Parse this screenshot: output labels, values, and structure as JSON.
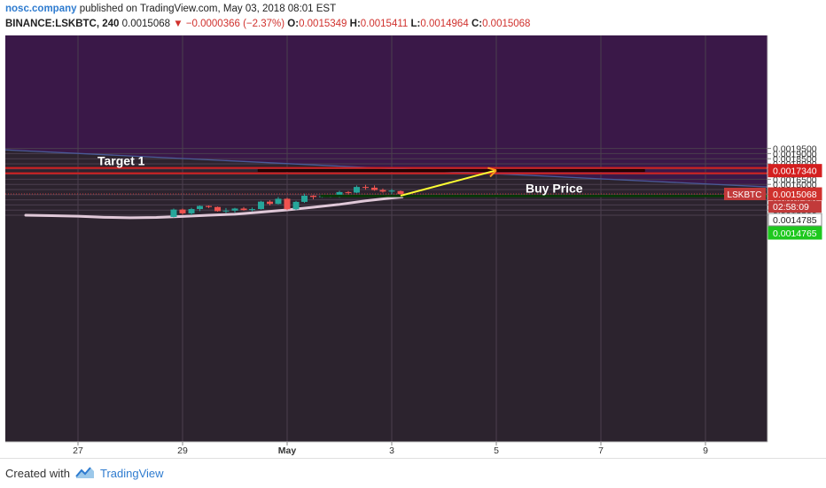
{
  "header": {
    "author": "nosc.company",
    "published_text": "published on TradingView.com, May 03, 2018 08:01 EST",
    "symbol": "BINANCE:LSKBTC, 240",
    "last": "0.0015068",
    "change": "−0.0000366 (−2.37%)",
    "open_label": "O:",
    "open": "0.0015349",
    "high_label": "H:",
    "high": "0.0015411",
    "low_label": "L:",
    "low": "0.0014964",
    "close_label": "C:",
    "close": "0.0015068"
  },
  "footer": {
    "created_with": "Created with",
    "brand": "TradingView"
  },
  "colors": {
    "up": "#26a69a",
    "down": "#ef5350",
    "ema": "#e0c8d8",
    "target_line": "#d41f1f",
    "buy_line": "#1ec81e",
    "arrow": "#ffff33",
    "trend_line": "#4a5a98",
    "purple_zone": "#3a1848"
  },
  "chart_data": {
    "type": "candlestick",
    "symbol": "LSKBTC",
    "exchange": "BINANCE",
    "interval": "240",
    "ylim": [
      0.00128,
      0.00198
    ],
    "y_ticks": [
      "0.0013000",
      "0.0013500",
      "0.0014000",
      "0.0014500",
      "0.0015000",
      "0.0015500",
      "0.0016000",
      "0.0016500",
      "0.0017000",
      "0.0017500",
      "0.0018000",
      "0.0018500",
      "0.0019000",
      "0.0019500"
    ],
    "x_ticks": [
      {
        "label": "27",
        "day": 27
      },
      {
        "label": "29",
        "day": 29
      },
      {
        "label": "May",
        "day": 31
      },
      {
        "label": "3",
        "day": 33
      },
      {
        "label": "5",
        "day": 35
      },
      {
        "label": "7",
        "day": 37
      },
      {
        "label": "9",
        "day": 39
      }
    ],
    "candles": [
      {
        "t": 28.83,
        "o": 0.001283,
        "h": 0.001365,
        "l": 0.001278,
        "c": 0.001355
      },
      {
        "t": 29.0,
        "o": 0.001355,
        "h": 0.001365,
        "l": 0.001305,
        "c": 0.001318
      },
      {
        "t": 29.17,
        "o": 0.001318,
        "h": 0.001372,
        "l": 0.0013,
        "c": 0.00136
      },
      {
        "t": 29.33,
        "o": 0.00136,
        "h": 0.001395,
        "l": 0.00134,
        "c": 0.00139
      },
      {
        "t": 29.5,
        "o": 0.00139,
        "h": 0.001395,
        "l": 0.00137,
        "c": 0.00138
      },
      {
        "t": 29.67,
        "o": 0.00138,
        "h": 0.001385,
        "l": 0.001335,
        "c": 0.00134
      },
      {
        "t": 29.83,
        "o": 0.00134,
        "h": 0.00137,
        "l": 0.00132,
        "c": 0.001345
      },
      {
        "t": 30.0,
        "o": 0.001345,
        "h": 0.001372,
        "l": 0.001325,
        "c": 0.001365
      },
      {
        "t": 30.17,
        "o": 0.001365,
        "h": 0.00138,
        "l": 0.001345,
        "c": 0.00135
      },
      {
        "t": 30.33,
        "o": 0.00135,
        "h": 0.001375,
        "l": 0.001338,
        "c": 0.00136
      },
      {
        "t": 30.5,
        "o": 0.00136,
        "h": 0.00144,
        "l": 0.001355,
        "c": 0.001432
      },
      {
        "t": 30.67,
        "o": 0.001432,
        "h": 0.001445,
        "l": 0.001395,
        "c": 0.00141
      },
      {
        "t": 30.83,
        "o": 0.00141,
        "h": 0.001478,
        "l": 0.001405,
        "c": 0.00146
      },
      {
        "t": 31.0,
        "o": 0.00146,
        "h": 0.00147,
        "l": 0.00135,
        "c": 0.001358
      },
      {
        "t": 31.17,
        "o": 0.001358,
        "h": 0.00144,
        "l": 0.00135,
        "c": 0.00143
      },
      {
        "t": 31.33,
        "o": 0.00143,
        "h": 0.00151,
        "l": 0.00142,
        "c": 0.00149
      },
      {
        "t": 31.5,
        "o": 0.00149,
        "h": 0.001495,
        "l": 0.001455,
        "c": 0.001478
      },
      {
        "t": 31.67,
        "o": 0.001478,
        "h": 0.001498,
        "l": 0.00147,
        "c": 0.001485
      },
      {
        "t": 31.83,
        "o": 0.001485,
        "h": 0.0015,
        "l": 0.001472,
        "c": 0.001495
      },
      {
        "t": 32.0,
        "o": 0.001495,
        "h": 0.001538,
        "l": 0.00147,
        "c": 0.001525
      },
      {
        "t": 32.17,
        "o": 0.001525,
        "h": 0.001535,
        "l": 0.0015,
        "c": 0.00152
      },
      {
        "t": 32.33,
        "o": 0.00152,
        "h": 0.00159,
        "l": 0.001515,
        "c": 0.001575
      },
      {
        "t": 32.5,
        "o": 0.001575,
        "h": 0.001595,
        "l": 0.001548,
        "c": 0.001568
      },
      {
        "t": 32.67,
        "o": 0.001568,
        "h": 0.00159,
        "l": 0.001538,
        "c": 0.001545
      },
      {
        "t": 32.83,
        "o": 0.001545,
        "h": 0.00156,
        "l": 0.00152,
        "c": 0.00153
      },
      {
        "t": 33.0,
        "o": 0.00153,
        "h": 0.001555,
        "l": 0.001505,
        "c": 0.00154
      },
      {
        "t": 33.17,
        "o": 0.001535,
        "h": 0.001541,
        "l": 0.001496,
        "c": 0.001507
      }
    ],
    "ema_line": [
      [
        26.0,
        0.0013
      ],
      [
        26.5,
        0.001296
      ],
      [
        27.0,
        0.00129
      ],
      [
        27.5,
        0.00128
      ],
      [
        28.0,
        0.001275
      ],
      [
        28.5,
        0.001278
      ],
      [
        29.0,
        0.001288
      ],
      [
        29.5,
        0.0013
      ],
      [
        30.0,
        0.00131
      ],
      [
        30.5,
        0.00133
      ],
      [
        31.0,
        0.001352
      ],
      [
        31.5,
        0.001378
      ],
      [
        32.0,
        0.001405
      ],
      [
        32.5,
        0.00144
      ],
      [
        33.0,
        0.001468
      ],
      [
        33.2,
        0.001478
      ]
    ],
    "trend_line": [
      [
        25.96,
        0.001927
      ],
      [
        40.4,
        0.00157
      ]
    ],
    "price_lines": [
      {
        "name": "Target 1",
        "value": 0.001734
      },
      {
        "name": "current",
        "value": 0.0015068
      }
    ],
    "zones": [
      {
        "label": "Target 1",
        "x0": 30.45,
        "x1": 37.83,
        "y0": 0.001742,
        "y1": 0.001728
      },
      {
        "label": "Buy Price",
        "x0": 31.65,
        "x1": 39.5,
        "y0": 0.001493,
        "y1": 0.001482
      }
    ],
    "arrow": {
      "from": [
        33.17,
        0.00149
      ],
      "to": [
        35.0,
        0.001737
      ]
    },
    "axis_labels": [
      {
        "value": 0.001734,
        "text": "0.0017340",
        "bg": "#d41f1f",
        "color": "#ffffff"
      },
      {
        "value": 0.0015068,
        "text": "0.0015068",
        "bg": "#d0312d",
        "color": "#ffffff",
        "tag": "LSKBTC"
      },
      {
        "value": 0.0014785,
        "text": "0.0014785",
        "bg": "#ffffff",
        "color": "#222222"
      },
      {
        "value": 0.0014765,
        "text": "0.0014765",
        "bg": "#1ec81e",
        "color": "#ffffff"
      }
    ],
    "countdown": "02:58:09"
  }
}
